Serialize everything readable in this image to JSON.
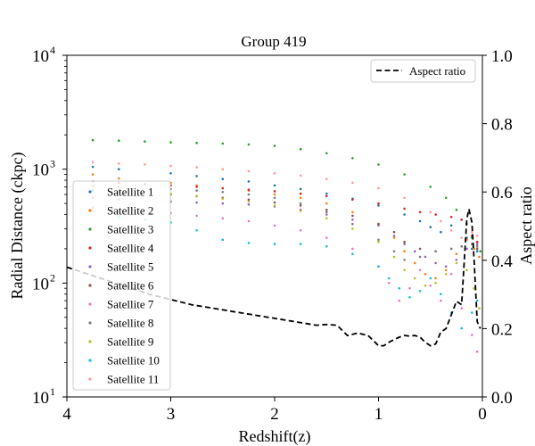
{
  "chart_data": {
    "type": "scatter",
    "title": "Group 419",
    "xlabel": "Redshift(z)",
    "ylabel": "Radial Distance (ckpc)",
    "y2label": "Aspect ratio",
    "xlim": [
      4,
      0
    ],
    "ylim": [
      10,
      10000
    ],
    "yscale": "log",
    "y2lim": [
      0.0,
      1.0
    ],
    "grid": false,
    "x_ticks": [
      "4",
      "3",
      "2",
      "1",
      "0"
    ],
    "y_ticks": [
      {
        "base": "10",
        "exp": "1"
      },
      {
        "base": "10",
        "exp": "2"
      },
      {
        "base": "10",
        "exp": "3"
      },
      {
        "base": "10",
        "exp": "4"
      }
    ],
    "y2_ticks": [
      "0.0",
      "0.2",
      "0.4",
      "0.6",
      "0.8",
      "1.0"
    ],
    "series_legend_position": "center-left",
    "line_legend_position": "upper-right",
    "series": [
      {
        "name": "Satellite 1",
        "color": "#1f77b4",
        "points": [
          [
            3.75,
            1050
          ],
          [
            3.5,
            1000
          ],
          [
            3.0,
            920
          ],
          [
            2.75,
            870
          ],
          [
            2.5,
            820
          ],
          [
            2.25,
            780
          ],
          [
            2.0,
            720
          ],
          [
            1.75,
            670
          ],
          [
            1.5,
            610
          ],
          [
            1.25,
            550
          ],
          [
            1.0,
            480
          ],
          [
            0.75,
            400
          ],
          [
            0.6,
            350
          ],
          [
            0.5,
            310
          ],
          [
            0.4,
            280
          ],
          [
            0.3,
            320
          ],
          [
            0.2,
            360
          ],
          [
            0.15,
            250
          ],
          [
            0.1,
            200
          ],
          [
            0.05,
            190
          ]
        ]
      },
      {
        "name": "Satellite 2",
        "color": "#ff7f0e",
        "points": [
          [
            3.75,
            900
          ],
          [
            3.5,
            830
          ],
          [
            3.0,
            760
          ],
          [
            2.75,
            720
          ],
          [
            2.5,
            680
          ],
          [
            2.25,
            650
          ],
          [
            2.0,
            600
          ],
          [
            1.75,
            560
          ],
          [
            1.5,
            500
          ],
          [
            1.25,
            420
          ],
          [
            1.0,
            330
          ],
          [
            0.85,
            250
          ],
          [
            0.75,
            190
          ],
          [
            0.65,
            150
          ],
          [
            0.55,
            120
          ],
          [
            0.45,
            110
          ],
          [
            0.35,
            130
          ],
          [
            0.25,
            180
          ],
          [
            0.15,
            240
          ],
          [
            0.08,
            200
          ],
          [
            0.03,
            170
          ]
        ]
      },
      {
        "name": "Satellite 3",
        "color": "#2ca02c",
        "points": [
          [
            3.75,
            1800
          ],
          [
            3.5,
            1780
          ],
          [
            3.25,
            1750
          ],
          [
            3.0,
            1720
          ],
          [
            2.75,
            1700
          ],
          [
            2.5,
            1680
          ],
          [
            2.25,
            1650
          ],
          [
            2.0,
            1600
          ],
          [
            1.75,
            1500
          ],
          [
            1.5,
            1380
          ],
          [
            1.25,
            1250
          ],
          [
            1.0,
            1100
          ],
          [
            0.75,
            900
          ],
          [
            0.5,
            700
          ],
          [
            0.35,
            560
          ],
          [
            0.25,
            440
          ],
          [
            0.15,
            330
          ],
          [
            0.1,
            250
          ],
          [
            0.05,
            210
          ],
          [
            0.02,
            190
          ]
        ]
      },
      {
        "name": "Satellite 4",
        "color": "#d62728",
        "points": [
          [
            3.75,
            780
          ],
          [
            3.5,
            760
          ],
          [
            3.25,
            740
          ],
          [
            3.0,
            720
          ],
          [
            2.75,
            700
          ],
          [
            2.5,
            680
          ],
          [
            2.25,
            660
          ],
          [
            2.0,
            640
          ],
          [
            1.75,
            610
          ],
          [
            1.5,
            580
          ],
          [
            1.25,
            540
          ],
          [
            1.0,
            500
          ],
          [
            0.75,
            450
          ],
          [
            0.6,
            420
          ],
          [
            0.45,
            400
          ],
          [
            0.3,
            380
          ],
          [
            0.2,
            360
          ],
          [
            0.1,
            260
          ],
          [
            0.05,
            230
          ]
        ]
      },
      {
        "name": "Satellite 5",
        "color": "#9467bd",
        "points": [
          [
            3.75,
            560
          ],
          [
            3.5,
            540
          ],
          [
            3.0,
            520
          ],
          [
            2.75,
            510
          ],
          [
            2.5,
            500
          ],
          [
            2.25,
            490
          ],
          [
            2.0,
            470
          ],
          [
            1.75,
            440
          ],
          [
            1.5,
            400
          ],
          [
            1.25,
            360
          ],
          [
            1.0,
            320
          ],
          [
            0.85,
            260
          ],
          [
            0.75,
            220
          ],
          [
            0.65,
            190
          ],
          [
            0.55,
            170
          ],
          [
            0.45,
            150
          ],
          [
            0.35,
            140
          ],
          [
            0.25,
            160
          ],
          [
            0.15,
            200
          ],
          [
            0.05,
            220
          ]
        ]
      },
      {
        "name": "Satellite 6",
        "color": "#8c564b",
        "points": [
          [
            3.75,
            650
          ],
          [
            3.5,
            630
          ],
          [
            3.0,
            600
          ],
          [
            2.75,
            580
          ],
          [
            2.5,
            560
          ],
          [
            2.25,
            540
          ],
          [
            2.0,
            510
          ],
          [
            1.75,
            480
          ],
          [
            1.5,
            440
          ],
          [
            1.25,
            390
          ],
          [
            1.0,
            330
          ],
          [
            0.85,
            280
          ],
          [
            0.75,
            230
          ],
          [
            0.6,
            200
          ],
          [
            0.45,
            190
          ],
          [
            0.3,
            200
          ],
          [
            0.2,
            210
          ],
          [
            0.1,
            220
          ],
          [
            0.05,
            200
          ]
        ]
      },
      {
        "name": "Satellite 7",
        "color": "#e377c2",
        "points": [
          [
            3.75,
            460
          ],
          [
            3.5,
            440
          ],
          [
            3.0,
            410
          ],
          [
            2.75,
            390
          ],
          [
            2.5,
            370
          ],
          [
            2.25,
            350
          ],
          [
            2.0,
            320
          ],
          [
            1.75,
            290
          ],
          [
            1.5,
            250
          ],
          [
            1.25,
            200
          ],
          [
            1.0,
            140
          ],
          [
            0.9,
            100
          ],
          [
            0.8,
            70
          ],
          [
            0.7,
            90
          ],
          [
            0.6,
            130
          ],
          [
            0.5,
            95
          ],
          [
            0.4,
            70
          ],
          [
            0.3,
            120
          ],
          [
            0.2,
            60
          ],
          [
            0.1,
            35
          ],
          [
            0.05,
            25
          ]
        ]
      },
      {
        "name": "Satellite 8",
        "color": "#7f7f7f",
        "points": [
          [
            3.75,
            720
          ],
          [
            3.5,
            700
          ],
          [
            3.0,
            670
          ],
          [
            2.75,
            650
          ],
          [
            2.5,
            630
          ],
          [
            2.25,
            600
          ],
          [
            2.0,
            560
          ],
          [
            1.75,
            500
          ],
          [
            1.5,
            420
          ],
          [
            1.25,
            330
          ],
          [
            1.0,
            240
          ],
          [
            0.85,
            190
          ],
          [
            0.75,
            160
          ],
          [
            0.6,
            170
          ],
          [
            0.45,
            190
          ],
          [
            0.3,
            200
          ],
          [
            0.2,
            210
          ],
          [
            0.1,
            220
          ],
          [
            0.05,
            210
          ]
        ]
      },
      {
        "name": "Satellite 9",
        "color": "#bcbd22",
        "points": [
          [
            3.75,
            700
          ],
          [
            3.5,
            660
          ],
          [
            3.0,
            610
          ],
          [
            2.75,
            580
          ],
          [
            2.5,
            550
          ],
          [
            2.25,
            520
          ],
          [
            2.0,
            480
          ],
          [
            1.75,
            430
          ],
          [
            1.5,
            370
          ],
          [
            1.25,
            300
          ],
          [
            1.0,
            230
          ],
          [
            0.85,
            170
          ],
          [
            0.75,
            130
          ],
          [
            0.65,
            110
          ],
          [
            0.55,
            95
          ],
          [
            0.45,
            100
          ],
          [
            0.35,
            120
          ],
          [
            0.25,
            150
          ],
          [
            0.15,
            130
          ],
          [
            0.08,
            90
          ],
          [
            0.03,
            60
          ]
        ]
      },
      {
        "name": "Satellite 10",
        "color": "#17becf",
        "points": [
          [
            3.75,
            430
          ],
          [
            3.5,
            380
          ],
          [
            3.25,
            360
          ],
          [
            3.0,
            340
          ],
          [
            2.75,
            290
          ],
          [
            2.5,
            240
          ],
          [
            2.25,
            225
          ],
          [
            2.0,
            220
          ],
          [
            1.75,
            220
          ],
          [
            1.5,
            210
          ],
          [
            1.25,
            180
          ],
          [
            1.0,
            140
          ],
          [
            0.9,
            110
          ],
          [
            0.8,
            90
          ],
          [
            0.7,
            75
          ],
          [
            0.6,
            85
          ],
          [
            0.5,
            110
          ],
          [
            0.4,
            80
          ],
          [
            0.3,
            55
          ],
          [
            0.2,
            40
          ],
          [
            0.1,
            55
          ],
          [
            0.05,
            70
          ]
        ]
      },
      {
        "name": "Satellite 11",
        "color": "#ff9896",
        "points": [
          [
            3.75,
            1150
          ],
          [
            3.5,
            1120
          ],
          [
            3.25,
            1100
          ],
          [
            3.0,
            1070
          ],
          [
            2.75,
            1040
          ],
          [
            2.5,
            1000
          ],
          [
            2.25,
            960
          ],
          [
            2.0,
            920
          ],
          [
            1.75,
            880
          ],
          [
            1.5,
            820
          ],
          [
            1.25,
            760
          ],
          [
            1.0,
            680
          ],
          [
            0.75,
            560
          ],
          [
            0.5,
            420
          ],
          [
            0.4,
            350
          ],
          [
            0.3,
            290
          ],
          [
            0.2,
            250
          ],
          [
            0.1,
            280
          ],
          [
            0.05,
            260
          ]
        ]
      }
    ],
    "line_series": [
      {
        "name": "Aspect ratio",
        "color": "#000000",
        "style": "dashed",
        "axis": "right",
        "points": [
          [
            4.0,
            0.38
          ],
          [
            3.8,
            0.36
          ],
          [
            3.6,
            0.34
          ],
          [
            3.4,
            0.32
          ],
          [
            3.2,
            0.3
          ],
          [
            3.0,
            0.285
          ],
          [
            2.8,
            0.27
          ],
          [
            2.6,
            0.26
          ],
          [
            2.4,
            0.25
          ],
          [
            2.2,
            0.24
          ],
          [
            2.0,
            0.23
          ],
          [
            1.8,
            0.22
          ],
          [
            1.6,
            0.21
          ],
          [
            1.5,
            0.212
          ],
          [
            1.4,
            0.21
          ],
          [
            1.3,
            0.18
          ],
          [
            1.2,
            0.187
          ],
          [
            1.1,
            0.18
          ],
          [
            1.05,
            0.165
          ],
          [
            1.0,
            0.15
          ],
          [
            0.95,
            0.15
          ],
          [
            0.9,
            0.16
          ],
          [
            0.85,
            0.168
          ],
          [
            0.8,
            0.175
          ],
          [
            0.75,
            0.18
          ],
          [
            0.7,
            0.178
          ],
          [
            0.65,
            0.18
          ],
          [
            0.6,
            0.175
          ],
          [
            0.55,
            0.16
          ],
          [
            0.5,
            0.15
          ],
          [
            0.45,
            0.155
          ],
          [
            0.4,
            0.19
          ],
          [
            0.35,
            0.2
          ],
          [
            0.3,
            0.24
          ],
          [
            0.25,
            0.28
          ],
          [
            0.2,
            0.27
          ],
          [
            0.15,
            0.52
          ],
          [
            0.13,
            0.55
          ],
          [
            0.1,
            0.51
          ],
          [
            0.08,
            0.4
          ],
          [
            0.05,
            0.22
          ],
          [
            0.02,
            0.2
          ]
        ]
      }
    ]
  }
}
